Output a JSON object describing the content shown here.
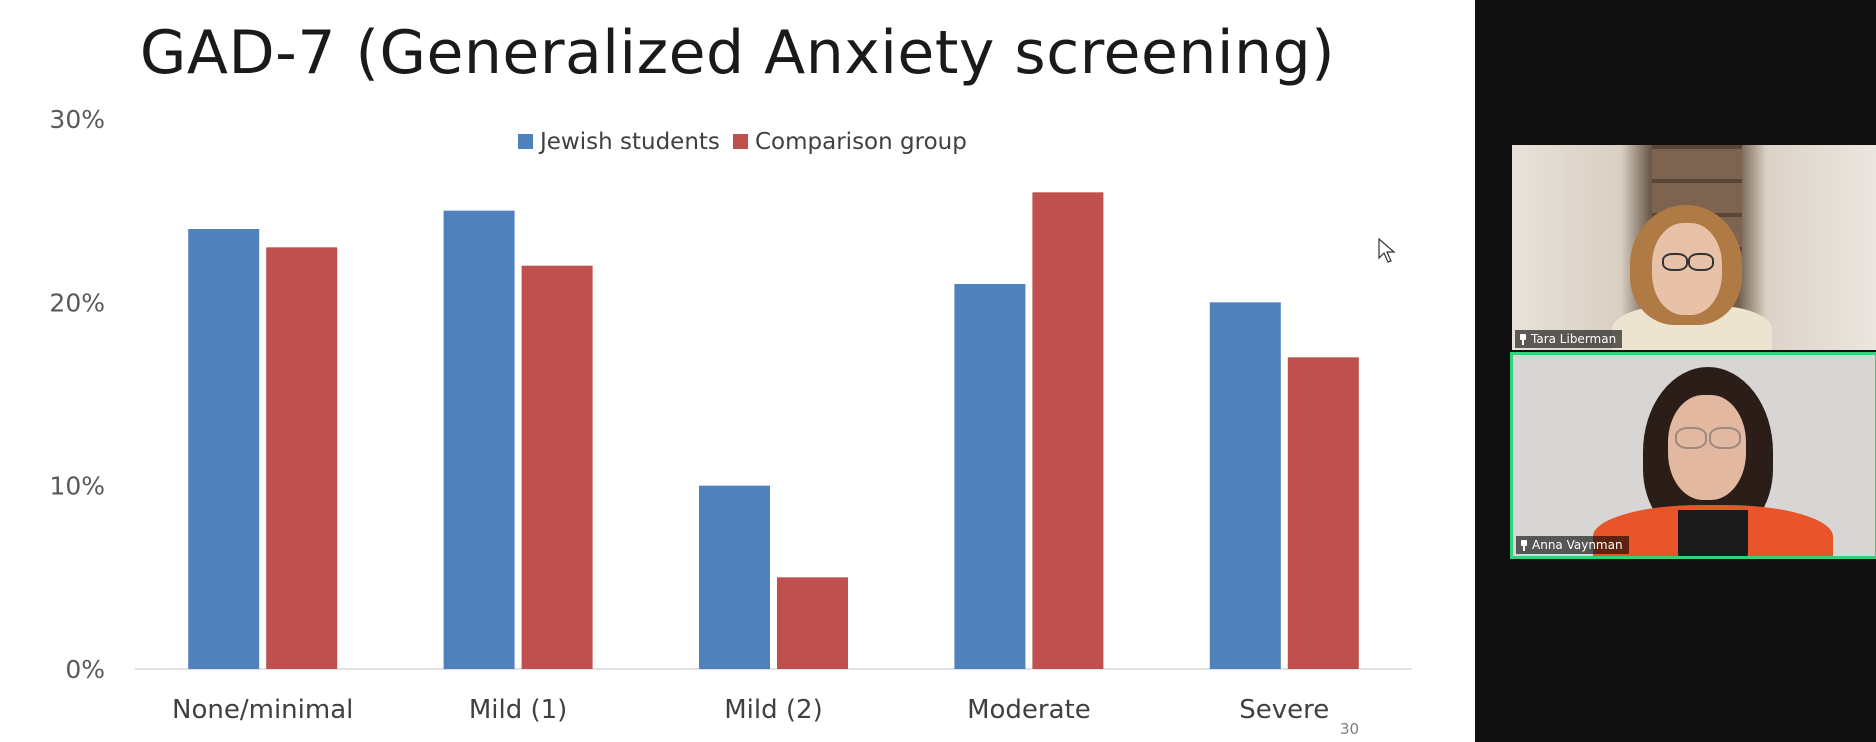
{
  "slide": {
    "title": "GAD-7 (Generalized Anxiety screening)",
    "slide_number": "30"
  },
  "chart_data": {
    "type": "bar",
    "categories": [
      "None/minimal",
      "Mild (1)",
      "Mild (2)",
      "Moderate",
      "Severe"
    ],
    "series": [
      {
        "name": "Jewish students",
        "values": [
          24,
          25,
          10,
          21,
          20
        ],
        "color": "#4f81bd"
      },
      {
        "name": "Comparison group",
        "values": [
          23,
          22,
          5,
          26,
          17
        ],
        "color": "#c0504d"
      }
    ],
    "ylim": [
      0,
      30
    ],
    "yticks": [
      "0%",
      "10%",
      "20%",
      "30%"
    ],
    "ytick_values": [
      0,
      10,
      20,
      30
    ],
    "legend_position": "top",
    "grid": false
  },
  "participants": [
    {
      "name": "Tara Liberman",
      "pinned": true,
      "icon": "pin-icon"
    },
    {
      "name": "Anna Vaynman",
      "pinned": true,
      "icon": "pin-icon",
      "active_speaker": true,
      "highlight_color": "#2fd37a"
    }
  ]
}
